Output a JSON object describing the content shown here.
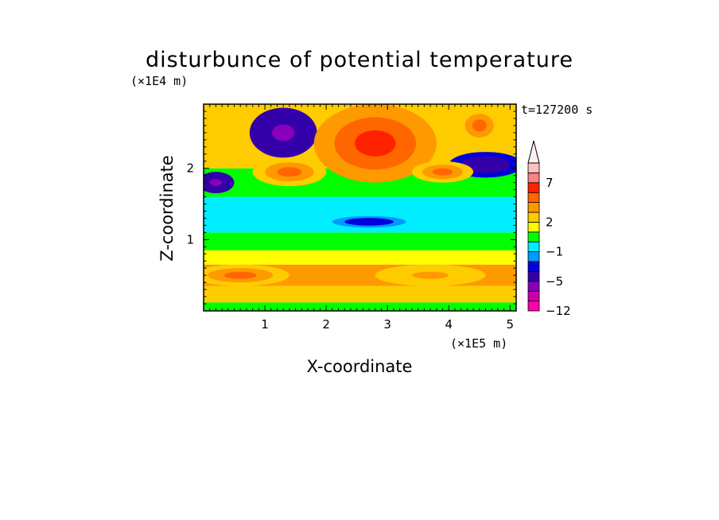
{
  "chart_data": {
    "type": "heatmap",
    "title": "disturbunce of potential temperature",
    "xlabel": "X-coordinate",
    "ylabel": "Z-coordinate",
    "x_unit": "(×1E5 m)",
    "y_unit": "(×1E4 m)",
    "time_label": "t=127200 s",
    "xlim": [
      0,
      5.1
    ],
    "ylim": [
      0,
      2.9
    ],
    "x_ticks": [
      1,
      2,
      3,
      4,
      5
    ],
    "y_ticks": [
      1,
      2
    ],
    "legend": {
      "placement": "right",
      "labels": [
        {
          "value": -12,
          "text": "−12"
        },
        {
          "value": -5,
          "text": "−5"
        },
        {
          "value": -1,
          "text": "−1"
        },
        {
          "value": 2,
          "text": "2"
        },
        {
          "value": 7,
          "text": "7"
        }
      ],
      "colors": [
        "#ff00aa",
        "#cc00aa",
        "#8800bb",
        "#3300aa",
        "#0000dd",
        "#0099ff",
        "#00eeff",
        "#00ff00",
        "#ffff00",
        "#ffcc00",
        "#ff9900",
        "#ff6600",
        "#ff2200",
        "#ff8080",
        "#ffc0c0",
        "#fff0f0"
      ]
    },
    "bands": [
      {
        "z": [
          0,
          0.12
        ],
        "value": 0.5
      },
      {
        "z": [
          0.12,
          0.35
        ],
        "value": 2
      },
      {
        "z": [
          0.35,
          0.65
        ],
        "value": 3
      },
      {
        "z": [
          0.65,
          0.85
        ],
        "value": 1.5
      },
      {
        "z": [
          0.85,
          1.1
        ],
        "value": 0
      },
      {
        "z": [
          1.1,
          1.6
        ],
        "value": -1
      },
      {
        "z": [
          1.6,
          2.0
        ],
        "value": 0.5
      },
      {
        "z": [
          2.0,
          2.9
        ],
        "value": 2
      }
    ],
    "features": [
      {
        "x": 1.3,
        "z": 2.5,
        "rx": 0.55,
        "rz": 0.35,
        "value": -6
      },
      {
        "x": 0.2,
        "z": 1.8,
        "rx": 0.3,
        "rz": 0.15,
        "value": -6
      },
      {
        "x": 4.6,
        "z": 2.05,
        "rx": 0.6,
        "rz": 0.18,
        "value": -5
      },
      {
        "x": 2.7,
        "z": 1.25,
        "rx": 0.6,
        "rz": 0.08,
        "value": -3
      },
      {
        "x": 2.8,
        "z": 2.35,
        "rx": 1.0,
        "rz": 0.55,
        "value": 5
      },
      {
        "x": 1.4,
        "z": 1.95,
        "rx": 0.6,
        "rz": 0.2,
        "value": 4
      },
      {
        "x": 3.9,
        "z": 1.95,
        "rx": 0.5,
        "rz": 0.15,
        "value": 4
      },
      {
        "x": 4.5,
        "z": 2.6,
        "rx": 0.35,
        "rz": 0.25,
        "value": 4
      },
      {
        "x": 0.6,
        "z": 0.5,
        "rx": 0.8,
        "rz": 0.15,
        "value": 4
      },
      {
        "x": 3.7,
        "z": 0.5,
        "rx": 0.9,
        "rz": 0.15,
        "value": 3.5
      }
    ]
  }
}
